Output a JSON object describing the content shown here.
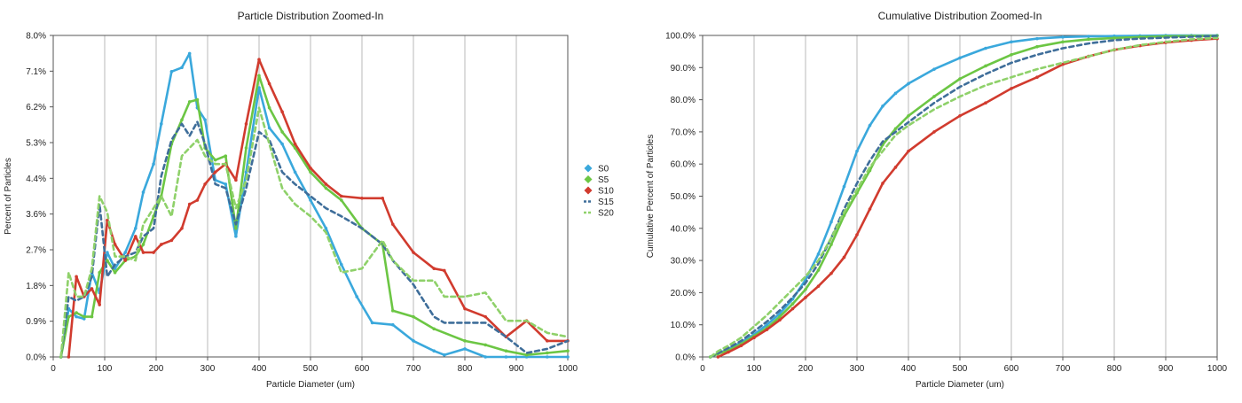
{
  "chart_data": [
    {
      "type": "line",
      "title": "Particle Distribution Zoomed-In",
      "xlabel": "Particle Diameter (um)",
      "ylabel": "Percent of Particles",
      "xlim": [
        0,
        1000
      ],
      "ylim": [
        0,
        8.0
      ],
      "xticks": [
        "0",
        "100",
        "200",
        "300",
        "400",
        "500",
        "600",
        "700",
        "800",
        "900",
        "1000"
      ],
      "yticks": [
        "0.0%",
        "0.9%",
        "1.8%",
        "2.7%",
        "3.6%",
        "4.4%",
        "5.3%",
        "6.2%",
        "7.1%",
        "8.0%"
      ],
      "grid": "vertical",
      "legend": "right",
      "series": [
        {
          "name": "S0",
          "color": "#3aa8dc",
          "dash": false,
          "x": [
            15,
            30,
            45,
            60,
            75,
            90,
            105,
            120,
            140,
            160,
            175,
            195,
            210,
            230,
            250,
            265,
            280,
            295,
            315,
            335,
            355,
            375,
            400,
            420,
            445,
            470,
            500,
            530,
            560,
            590,
            620,
            660,
            700,
            740,
            760,
            800,
            840,
            880,
            920,
            960,
            1000
          ],
          "y": [
            0,
            1.2,
            1.0,
            0.95,
            2.1,
            1.6,
            2.6,
            2.2,
            2.6,
            3.2,
            4.1,
            4.8,
            5.8,
            7.1,
            7.2,
            7.55,
            6.2,
            5.9,
            4.4,
            4.3,
            3.0,
            4.6,
            6.7,
            5.7,
            5.3,
            4.6,
            3.9,
            3.2,
            2.3,
            1.5,
            0.85,
            0.8,
            0.4,
            0.15,
            0.05,
            0.2,
            0.0,
            0.0,
            0.0,
            0.0,
            0.0
          ]
        },
        {
          "name": "S5",
          "color": "#6cc644",
          "dash": false,
          "x": [
            15,
            30,
            45,
            60,
            75,
            90,
            105,
            120,
            140,
            160,
            175,
            195,
            210,
            230,
            250,
            265,
            280,
            295,
            315,
            335,
            355,
            375,
            400,
            420,
            445,
            470,
            500,
            530,
            560,
            600,
            640,
            660,
            700,
            740,
            800,
            840,
            880,
            920,
            960,
            1000
          ],
          "y": [
            0,
            1.0,
            1.1,
            1.0,
            1.0,
            2.1,
            2.4,
            2.1,
            2.4,
            2.5,
            2.8,
            3.5,
            4.0,
            5.3,
            5.9,
            6.35,
            6.4,
            5.2,
            4.9,
            5.0,
            3.2,
            5.2,
            7.0,
            6.2,
            5.6,
            5.2,
            4.6,
            4.2,
            3.9,
            3.2,
            2.8,
            1.15,
            1.0,
            0.7,
            0.4,
            0.3,
            0.15,
            0.05,
            0.1,
            0.15
          ]
        },
        {
          "name": "S10",
          "color": "#d13b2e",
          "dash": false,
          "x": [
            30,
            45,
            60,
            75,
            90,
            105,
            120,
            140,
            160,
            175,
            195,
            210,
            230,
            250,
            265,
            280,
            295,
            315,
            335,
            355,
            375,
            400,
            420,
            445,
            470,
            500,
            530,
            560,
            600,
            640,
            660,
            700,
            740,
            760,
            800,
            840,
            880,
            920,
            960,
            1000
          ],
          "y": [
            0,
            2.0,
            1.5,
            1.7,
            1.3,
            3.4,
            2.8,
            2.4,
            3.0,
            2.6,
            2.6,
            2.8,
            2.9,
            3.2,
            3.8,
            3.9,
            4.3,
            4.6,
            4.8,
            4.4,
            5.8,
            7.4,
            6.8,
            6.1,
            5.3,
            4.7,
            4.3,
            4.0,
            3.95,
            3.95,
            3.3,
            2.6,
            2.2,
            2.15,
            1.2,
            1.0,
            0.5,
            0.9,
            0.4,
            0.4
          ]
        },
        {
          "name": "S15",
          "color": "#3f6e9a",
          "dash": true,
          "x": [
            15,
            30,
            45,
            60,
            75,
            90,
            105,
            120,
            140,
            160,
            175,
            195,
            210,
            230,
            250,
            265,
            280,
            295,
            315,
            335,
            355,
            375,
            400,
            420,
            445,
            470,
            500,
            530,
            560,
            600,
            640,
            660,
            700,
            740,
            760,
            800,
            840,
            880,
            920,
            960,
            1000
          ],
          "y": [
            0,
            1.5,
            1.4,
            1.5,
            2.0,
            3.8,
            2.0,
            2.3,
            2.5,
            2.6,
            3.0,
            3.2,
            4.5,
            5.4,
            5.8,
            5.5,
            5.85,
            5.3,
            4.3,
            4.2,
            3.3,
            4.2,
            5.6,
            5.4,
            4.6,
            4.3,
            4.0,
            3.7,
            3.5,
            3.2,
            2.8,
            2.4,
            1.8,
            1.0,
            0.85,
            0.85,
            0.85,
            0.5,
            0.1,
            0.2,
            0.4
          ]
        },
        {
          "name": "S20",
          "color": "#8fd16a",
          "dash": true,
          "x": [
            15,
            30,
            45,
            60,
            75,
            90,
            105,
            120,
            140,
            160,
            175,
            195,
            210,
            230,
            250,
            265,
            280,
            295,
            315,
            335,
            355,
            375,
            400,
            420,
            445,
            470,
            500,
            530,
            560,
            600,
            640,
            660,
            700,
            740,
            760,
            800,
            840,
            880,
            920,
            960,
            1000
          ],
          "y": [
            0,
            2.1,
            1.5,
            1.5,
            2.2,
            4.0,
            3.6,
            2.5,
            2.5,
            2.4,
            3.3,
            3.7,
            4.0,
            3.5,
            5.0,
            5.2,
            5.4,
            5.0,
            4.8,
            4.8,
            3.7,
            4.4,
            6.2,
            5.3,
            4.2,
            3.8,
            3.5,
            3.1,
            2.1,
            2.2,
            2.9,
            2.4,
            1.9,
            1.9,
            1.5,
            1.5,
            1.6,
            0.9,
            0.9,
            0.6,
            0.5
          ]
        }
      ]
    },
    {
      "type": "line",
      "title": "Cumulative Distribution Zoomed-In",
      "xlabel": "Particle Diameter (um)",
      "ylabel": "Cumulative Percent of Particles",
      "xlim": [
        0,
        1000
      ],
      "ylim": [
        0,
        100
      ],
      "xticks": [
        "0",
        "100",
        "200",
        "300",
        "400",
        "500",
        "600",
        "700",
        "800",
        "900",
        "1000"
      ],
      "yticks": [
        "0.0%",
        "10.0%",
        "20.0%",
        "30.0%",
        "40.0%",
        "50.0%",
        "60.0%",
        "70.0%",
        "80.0%",
        "90.0%",
        "100.0%"
      ],
      "grid": "vertical",
      "series": [
        {
          "name": "S0",
          "color": "#3aa8dc",
          "dash": false,
          "x": [
            15,
            30,
            50,
            75,
            100,
            125,
            150,
            175,
            200,
            225,
            250,
            275,
            300,
            325,
            350,
            375,
            400,
            450,
            500,
            550,
            600,
            650,
            700,
            750,
            800,
            850,
            900,
            950,
            1000
          ],
          "y": [
            0,
            1.0,
            2.5,
            4.5,
            7.0,
            10.0,
            13.5,
            18.0,
            24.0,
            32.0,
            42.0,
            53.0,
            64.0,
            72.0,
            78.0,
            82.0,
            85.0,
            89.5,
            93.0,
            96.0,
            98.0,
            99.0,
            99.5,
            99.7,
            99.8,
            99.9,
            100,
            100,
            100
          ]
        },
        {
          "name": "S5",
          "color": "#6cc644",
          "dash": false,
          "x": [
            15,
            30,
            50,
            75,
            100,
            125,
            150,
            175,
            200,
            225,
            250,
            275,
            300,
            325,
            350,
            375,
            400,
            450,
            500,
            550,
            600,
            650,
            700,
            750,
            800,
            850,
            900,
            950,
            1000
          ],
          "y": [
            0,
            1.0,
            2.0,
            4.0,
            6.5,
            9.0,
            12.5,
            16.5,
            21.0,
            27.0,
            35.0,
            44.0,
            51.0,
            58.0,
            66.0,
            71.0,
            75.0,
            81.0,
            86.5,
            90.5,
            94.0,
            96.5,
            98.0,
            98.8,
            99.2,
            99.5,
            99.7,
            99.8,
            99.9
          ]
        },
        {
          "name": "S10",
          "color": "#d13b2e",
          "dash": false,
          "x": [
            30,
            50,
            75,
            100,
            125,
            150,
            175,
            200,
            225,
            250,
            275,
            300,
            325,
            350,
            375,
            400,
            450,
            500,
            550,
            600,
            650,
            700,
            750,
            800,
            850,
            900,
            950,
            1000
          ],
          "y": [
            0,
            1.5,
            3.5,
            6.0,
            8.5,
            11.5,
            15.0,
            18.5,
            22.0,
            26.0,
            31.0,
            38.0,
            46.0,
            54.0,
            59.0,
            64.0,
            70.0,
            75.0,
            79.0,
            83.5,
            87.0,
            91.0,
            93.5,
            95.5,
            96.8,
            97.8,
            98.5,
            99.0
          ]
        },
        {
          "name": "S15",
          "color": "#3f6e9a",
          "dash": true,
          "x": [
            15,
            30,
            50,
            75,
            100,
            125,
            150,
            175,
            200,
            225,
            250,
            275,
            300,
            325,
            350,
            375,
            400,
            450,
            500,
            550,
            600,
            650,
            700,
            750,
            800,
            850,
            900,
            950,
            1000
          ],
          "y": [
            0,
            1.2,
            2.8,
            5.0,
            8.0,
            11.0,
            14.5,
            18.5,
            23.0,
            29.0,
            37.0,
            46.0,
            54.0,
            61.0,
            67.0,
            70.0,
            73.0,
            79.0,
            84.0,
            88.0,
            91.5,
            94.0,
            96.0,
            97.5,
            98.5,
            99.0,
            99.3,
            99.6,
            99.8
          ]
        },
        {
          "name": "S20",
          "color": "#8fd16a",
          "dash": true,
          "x": [
            15,
            30,
            50,
            75,
            100,
            125,
            150,
            175,
            200,
            225,
            250,
            275,
            300,
            325,
            350,
            375,
            400,
            450,
            500,
            550,
            600,
            650,
            700,
            750,
            800,
            850,
            900,
            950,
            1000
          ],
          "y": [
            0,
            1.8,
            3.5,
            6.0,
            9.5,
            13.0,
            17.0,
            21.0,
            25.0,
            30.0,
            37.0,
            45.0,
            52.0,
            59.0,
            64.0,
            69.0,
            72.0,
            77.0,
            81.0,
            84.5,
            87.0,
            89.5,
            91.5,
            93.5,
            95.5,
            97.0,
            98.0,
            98.8,
            99.2
          ]
        }
      ]
    }
  ]
}
